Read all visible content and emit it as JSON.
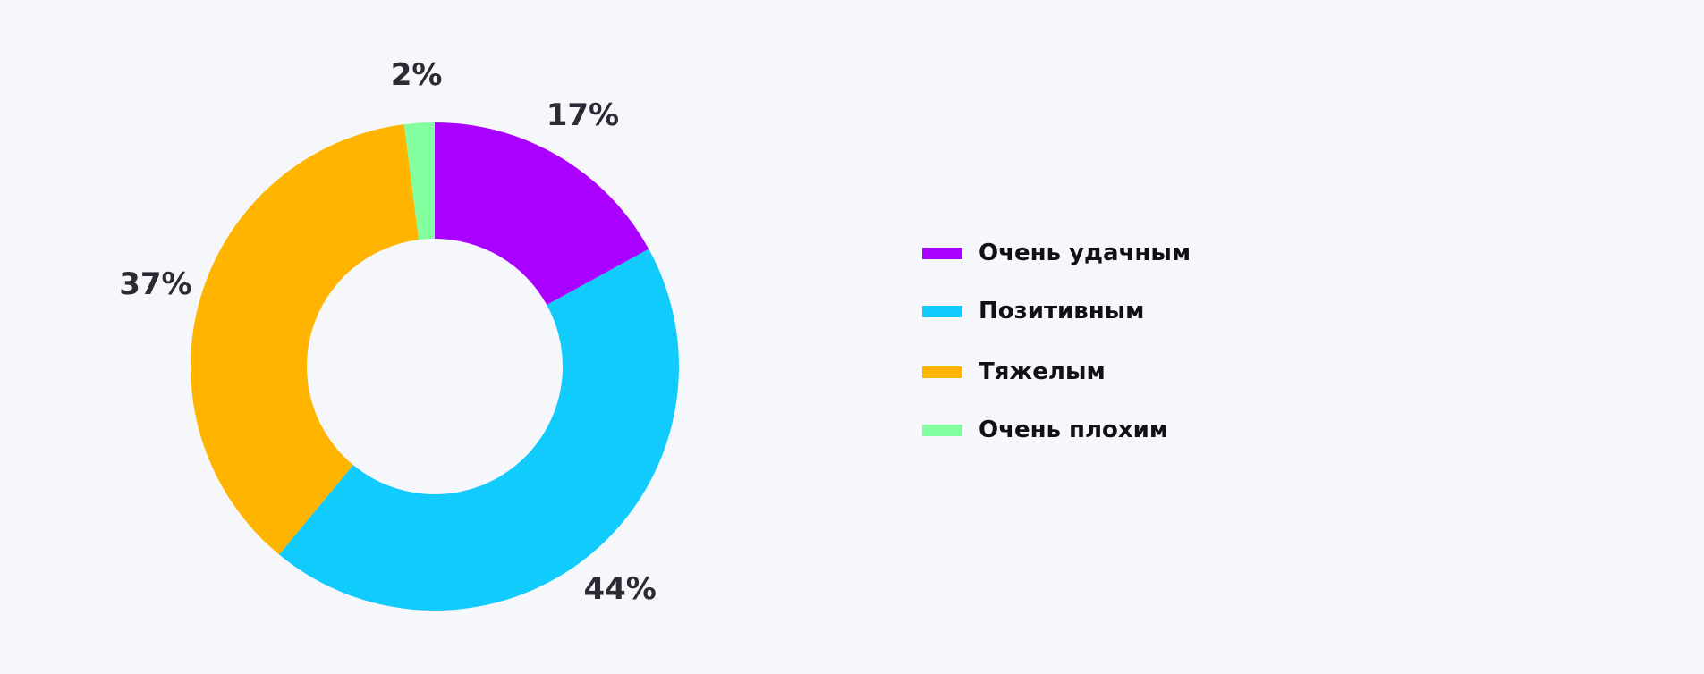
{
  "chart_data": {
    "type": "pie",
    "donut": true,
    "title": "",
    "legend_position": "right",
    "unit": "%",
    "categories": [
      "Очень удачным",
      "Позитивным",
      "Тяжелым",
      "Очень плохим"
    ],
    "values": [
      17,
      44,
      37,
      2
    ],
    "labels": [
      "17%",
      "44%",
      "37%",
      "2%"
    ],
    "colors": [
      "#aa00ff",
      "#12cbfd",
      "#ffb400",
      "#84ff9f"
    ]
  }
}
